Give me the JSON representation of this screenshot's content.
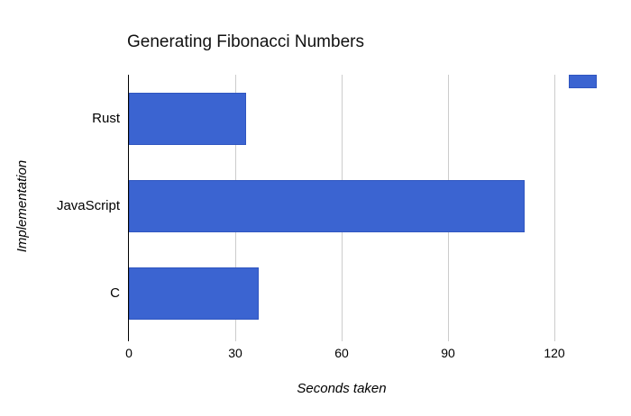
{
  "chart_data": {
    "type": "bar",
    "orientation": "horizontal",
    "title": "Generating Fibonacci Numbers",
    "categories": [
      "Rust",
      "JavaScript",
      "C"
    ],
    "values": [
      33,
      111.5,
      36.5
    ],
    "xlabel": "Seconds taken",
    "ylabel": "Implementation",
    "xlim": [
      0,
      120
    ],
    "xticks": [
      0,
      30,
      60,
      90,
      120
    ],
    "grid": true,
    "legend": {
      "position": "top-right",
      "swatch_only": true,
      "label": ""
    }
  },
  "colors": {
    "bar_fill": "#3B64D1",
    "bar_border": "#2F55C0",
    "gridline": "#cccccc",
    "axis": "#000000",
    "text": "#000000",
    "background": "#ffffff"
  }
}
